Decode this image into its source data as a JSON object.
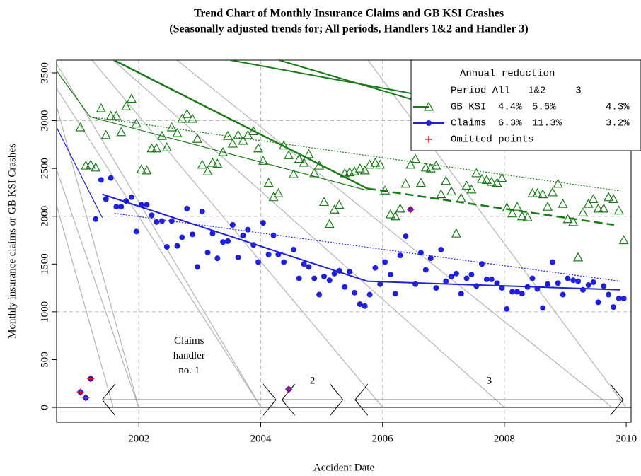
{
  "chart_data": {
    "type": "scatter",
    "title": "Trend Chart of Monthly Insurance Claims and GB KSI Crashes",
    "subtitle": "(Seasonally adjusted trends for; All periods, Handlers 1&2 and Handler 3)",
    "x_label": "Accident Date",
    "y_label": "Monthly insurance claims or GB KSI Crashes",
    "xlim": [
      2000.65,
      2010.08
    ],
    "ylim": [
      -155,
      3633
    ],
    "xticks": [
      2002,
      2004,
      2006,
      2008,
      2010
    ],
    "yticks": [
      0,
      500,
      1000,
      1500,
      2000,
      2500,
      3000,
      3500
    ],
    "grid_x": [
      2002,
      2004,
      2006,
      2008
    ],
    "grid_y": [
      1000,
      2000,
      3000
    ],
    "x": [
      2001.04,
      2001.13,
      2001.21,
      2001.29,
      2001.38,
      2001.46,
      2001.54,
      2001.63,
      2001.71,
      2001.79,
      2001.88,
      2001.96,
      2002.04,
      2002.13,
      2002.21,
      2002.29,
      2002.38,
      2002.46,
      2002.54,
      2002.63,
      2002.71,
      2002.79,
      2002.88,
      2002.96,
      2003.04,
      2003.13,
      2003.21,
      2003.29,
      2003.38,
      2003.46,
      2003.54,
      2003.63,
      2003.71,
      2003.79,
      2003.88,
      2003.96,
      2004.04,
      2004.13,
      2004.21,
      2004.29,
      2004.38,
      2004.46,
      2004.54,
      2004.63,
      2004.71,
      2004.79,
      2004.88,
      2004.96,
      2005.04,
      2005.13,
      2005.21,
      2005.29,
      2005.38,
      2005.46,
      2005.54,
      2005.63,
      2005.71,
      2005.79,
      2005.88,
      2005.96,
      2006.04,
      2006.13,
      2006.21,
      2006.29,
      2006.38,
      2006.46,
      2006.54,
      2006.63,
      2006.71,
      2006.79,
      2006.88,
      2006.96,
      2007.04,
      2007.13,
      2007.21,
      2007.29,
      2007.38,
      2007.46,
      2007.54,
      2007.63,
      2007.71,
      2007.79,
      2007.88,
      2007.96,
      2008.04,
      2008.13,
      2008.21,
      2008.29,
      2008.38,
      2008.46,
      2008.54,
      2008.63,
      2008.71,
      2008.79,
      2008.88,
      2008.96,
      2009.04,
      2009.13,
      2009.21,
      2009.29,
      2009.38,
      2009.46,
      2009.54,
      2009.63,
      2009.71,
      2009.79,
      2009.88,
      2009.96
    ],
    "series": [
      {
        "name": "GB KSI",
        "color": "#1a7a1a",
        "marker": "triangle",
        "values": [
          2930,
          2530,
          2540,
          2510,
          3130,
          2850,
          3050,
          3050,
          2880,
          3150,
          3230,
          2970,
          2490,
          2480,
          2710,
          2710,
          2840,
          2720,
          2930,
          2870,
          3020,
          3070,
          3020,
          2810,
          2540,
          2470,
          2560,
          2550,
          2670,
          2840,
          2760,
          2850,
          2790,
          2850,
          2890,
          2710,
          2580,
          2350,
          2200,
          2240,
          2740,
          2640,
          2440,
          2600,
          2560,
          2650,
          2450,
          2530,
          2150,
          1920,
          2070,
          2120,
          2450,
          2460,
          2470,
          2500,
          2480,
          2540,
          2560,
          2540,
          2270,
          2020,
          2000,
          2080,
          2340,
          2540,
          2600,
          2350,
          2510,
          2500,
          2530,
          2230,
          2370,
          2260,
          1820,
          2190,
          2320,
          2280,
          2450,
          2390,
          2380,
          2360,
          2350,
          2400,
          2090,
          2030,
          2100,
          2000,
          1990,
          2240,
          2240,
          2230,
          2100,
          2250,
          2340,
          2130,
          1970,
          1940,
          1570,
          2040,
          2130,
          2180,
          2080,
          2080,
          2200,
          2180,
          2060,
          1750
        ]
      },
      {
        "name": "Claims",
        "color": "#1f1fe0",
        "marker": "circle",
        "values": [
          160,
          100,
          300,
          1970,
          2380,
          2180,
          2400,
          2100,
          2100,
          2160,
          2200,
          1840,
          2120,
          2120,
          2010,
          1940,
          1950,
          1680,
          1950,
          1690,
          1780,
          2080,
          1810,
          1470,
          2050,
          1620,
          1820,
          1560,
          1730,
          1740,
          1910,
          1570,
          1800,
          1860,
          1700,
          1520,
          1930,
          1600,
          1800,
          1600,
          1520,
          190,
          1650,
          1350,
          1500,
          1470,
          1350,
          1180,
          1370,
          1330,
          1400,
          1430,
          1260,
          1420,
          1200,
          1080,
          1060,
          1180,
          1460,
          1290,
          1520,
          1390,
          1190,
          1590,
          1790,
          2070,
          1290,
          1620,
          1440,
          1560,
          1250,
          1650,
          1320,
          1370,
          1400,
          1190,
          1350,
          1390,
          1270,
          1500,
          1340,
          1340,
          1300,
          1250,
          1030,
          1210,
          1210,
          1190,
          1260,
          1350,
          1240,
          1040,
          1290,
          1520,
          1300,
          1180,
          1350,
          1330,
          1320,
          1230,
          1280,
          1310,
          1100,
          1270,
          1180,
          1050,
          1140,
          1140
        ]
      },
      {
        "name": "Omitted points",
        "color": "#ff0000",
        "marker": "plus",
        "x": [
          2001.04,
          2001.13,
          2001.21,
          2004.46,
          2006.46
        ],
        "values": [
          160,
          100,
          300,
          190,
          2070
        ]
      }
    ],
    "lines": [
      {
        "color": "#1a7a1a",
        "dash": "",
        "width": 2.5,
        "x": [
          2001.6,
          2005.75
        ],
        "values": [
          3630,
          2290
        ]
      },
      {
        "color": "#1a7a1a",
        "dash": "12,6",
        "width": 2.5,
        "x": [
          2005.75,
          2009.8
        ],
        "values": [
          2290,
          1910
        ]
      },
      {
        "color": "#1a7a1a",
        "dash": "",
        "width": 1.2,
        "x": [
          2000.65,
          2001.2,
          2005.75
        ],
        "values": [
          3520,
          3040,
          2270
        ]
      },
      {
        "color": "#1a7a1a",
        "dash": "2,2",
        "width": 1.2,
        "x": [
          2001.2,
          2009.9
        ],
        "values": [
          3040,
          2265
        ]
      },
      {
        "color": "#1a7a1a",
        "dash": "",
        "width": 2,
        "x": [
          2003.5,
          2006.6
        ],
        "values": [
          3633,
          3270
        ]
      },
      {
        "color": "#1a7a1a",
        "dash": "",
        "width": 2,
        "x": [
          2004.3,
          2006.6
        ],
        "values": [
          3633,
          3200
        ]
      },
      {
        "color": "#1f1fe0",
        "dash": "",
        "width": 2,
        "x": [
          2001.4,
          2005.75,
          2009.9
        ],
        "values": [
          2230,
          1320,
          1230
        ]
      },
      {
        "color": "#1f1fe0",
        "dash": "",
        "width": 1.2,
        "x": [
          2000.65,
          2001.4
        ],
        "values": [
          2930,
          1985
        ]
      },
      {
        "color": "#1f1fe0",
        "dash": "2,2",
        "width": 1.2,
        "x": [
          2001.6,
          2009.9
        ],
        "values": [
          2030,
          1320
        ]
      }
    ],
    "handlers": [
      {
        "label": "Claims handler no. 1",
        "start": 2001.4,
        "end": 2004.25
      },
      {
        "label": "2",
        "start": 2004.35,
        "end": 2005.35
      },
      {
        "label": "3",
        "start": 2005.55,
        "end": 2009.95
      }
    ],
    "handler_y": 80,
    "legend": {
      "title": "Annual reduction",
      "header": "Period All   1&2     3",
      "rows": [
        [
          "4.4%",
          "5.6%",
          "4.3%"
        ],
        [
          "6.3%",
          "11.3%",
          "3.2%"
        ]
      ]
    }
  }
}
